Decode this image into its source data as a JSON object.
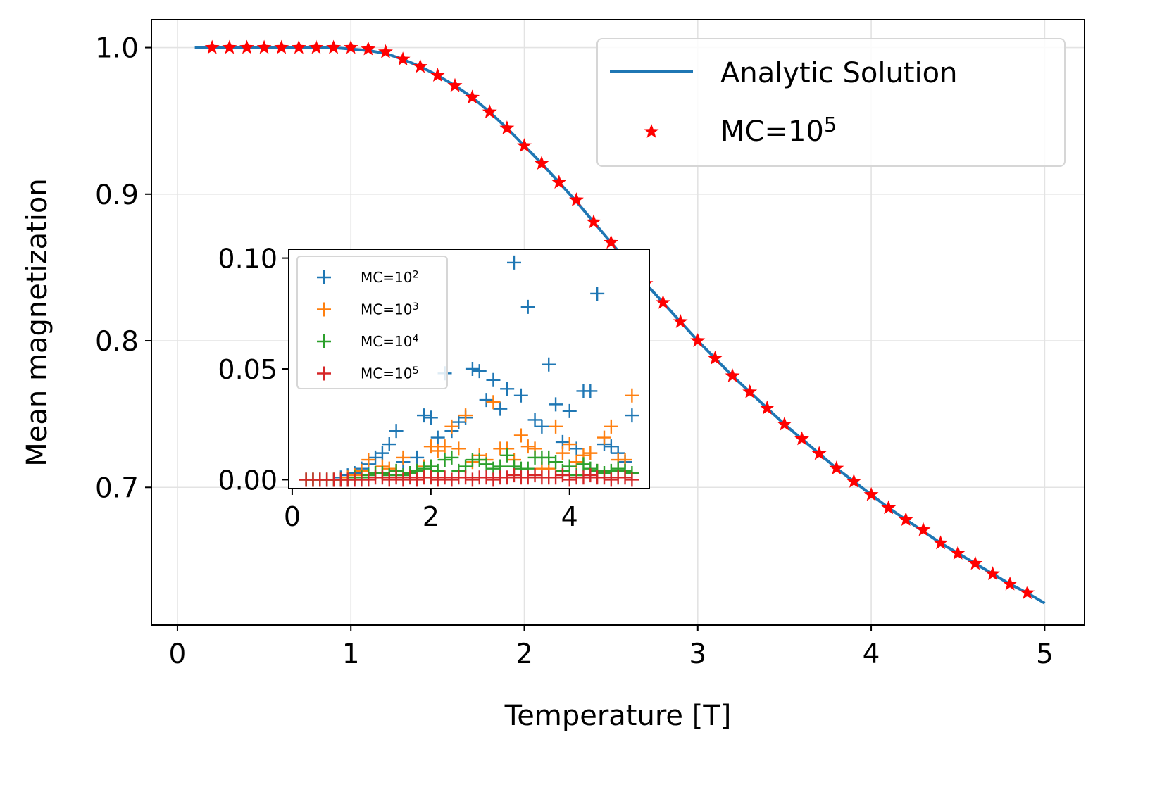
{
  "chart_data": [
    {
      "type": "line",
      "xlabel": "Temperature [T]",
      "ylabel": "Mean magnetization",
      "xlim": [
        -0.15,
        5.23
      ],
      "ylim": [
        0.606,
        1.019
      ],
      "xticks": [
        0,
        1,
        2,
        3,
        4,
        5
      ],
      "xtick_labels": [
        "0",
        "1",
        "2",
        "3",
        "4",
        "5"
      ],
      "yticks": [
        0.7,
        0.8,
        0.9,
        1.0
      ],
      "ytick_labels": [
        "0.7",
        "0.8",
        "0.9",
        "1.0"
      ],
      "grid": true,
      "legend_position": "top-right",
      "series": [
        {
          "name": "Analytic Solution",
          "kind": "line",
          "color": "#1f77b4",
          "x": [
            0.1,
            0.2,
            0.3,
            0.4,
            0.5,
            0.6,
            0.7,
            0.8,
            0.9,
            1.0,
            1.1,
            1.2,
            1.3,
            1.4,
            1.5,
            1.6,
            1.7,
            1.8,
            1.9,
            2.0,
            2.1,
            2.2,
            2.3,
            2.4,
            2.5,
            2.6,
            2.7,
            2.8,
            2.9,
            3.0,
            3.1,
            3.2,
            3.3,
            3.4,
            3.5,
            3.6,
            3.7,
            3.8,
            3.9,
            4.0,
            4.1,
            4.2,
            4.3,
            4.4,
            4.5,
            4.6,
            4.7,
            4.8,
            4.9,
            5.0
          ],
          "y": [
            1.0,
            1.0,
            1.0,
            1.0,
            1.0,
            1.0,
            1.0,
            1.0,
            1.0,
            0.999,
            0.998,
            0.996,
            0.992,
            0.987,
            0.981,
            0.974,
            0.966,
            0.956,
            0.945,
            0.933,
            0.921,
            0.908,
            0.895,
            0.881,
            0.867,
            0.853,
            0.839,
            0.826,
            0.813,
            0.8,
            0.788,
            0.776,
            0.765,
            0.754,
            0.743,
            0.733,
            0.723,
            0.713,
            0.704,
            0.695,
            0.686,
            0.678,
            0.67,
            0.662,
            0.655,
            0.648,
            0.641,
            0.634,
            0.628,
            0.621
          ]
        },
        {
          "name": "MC=10^5",
          "legend_label": {
            "base": "MC=10",
            "exp": "5"
          },
          "kind": "scatter",
          "marker": "star",
          "color": "#ff0000",
          "x": [
            0.2,
            0.3,
            0.4,
            0.5,
            0.6,
            0.7,
            0.8,
            0.9,
            1.0,
            1.1,
            1.2,
            1.3,
            1.4,
            1.5,
            1.6,
            1.7,
            1.8,
            1.9,
            2.0,
            2.1,
            2.2,
            2.3,
            2.4,
            2.5,
            2.6,
            2.7,
            2.8,
            2.9,
            3.0,
            3.1,
            3.2,
            3.3,
            3.4,
            3.5,
            3.6,
            3.7,
            3.8,
            3.9,
            4.0,
            4.1,
            4.2,
            4.3,
            4.4,
            4.5,
            4.6,
            4.7,
            4.8,
            4.9
          ],
          "y": [
            1.0,
            1.0,
            1.0,
            1.0,
            1.0,
            1.0,
            1.0,
            1.0,
            1.0,
            0.999,
            0.997,
            0.992,
            0.987,
            0.981,
            0.974,
            0.966,
            0.956,
            0.945,
            0.933,
            0.921,
            0.908,
            0.896,
            0.881,
            0.867,
            0.853,
            0.839,
            0.826,
            0.813,
            0.8,
            0.788,
            0.776,
            0.765,
            0.754,
            0.743,
            0.733,
            0.723,
            0.713,
            0.704,
            0.695,
            0.686,
            0.678,
            0.671,
            0.662,
            0.655,
            0.648,
            0.641,
            0.634,
            0.628
          ]
        }
      ]
    },
    {
      "type": "scatter",
      "role": "inset",
      "xlabel": "",
      "ylabel": "",
      "xlim": [
        -0.05,
        5.15
      ],
      "ylim": [
        -0.004,
        0.104
      ],
      "xticks": [
        0,
        2,
        4
      ],
      "xtick_labels": [
        "0",
        "2",
        "4"
      ],
      "yticks": [
        0.0,
        0.05,
        0.1
      ],
      "ytick_labels": [
        "0.00",
        "0.05",
        "0.10"
      ],
      "grid": false,
      "legend_position": "top-left",
      "series": [
        {
          "name": "MC=10^2",
          "legend_label": {
            "base": "MC=10",
            "exp": "2"
          },
          "marker": "plus",
          "color": "#1f77b4",
          "x": [
            0.2,
            0.3,
            0.4,
            0.5,
            0.6,
            0.7,
            0.8,
            0.9,
            1.0,
            1.1,
            1.2,
            1.3,
            1.4,
            1.5,
            1.6,
            1.7,
            1.8,
            1.9,
            2.0,
            2.1,
            2.2,
            2.3,
            2.4,
            2.5,
            2.6,
            2.7,
            2.8,
            2.9,
            3.0,
            3.1,
            3.2,
            3.3,
            3.4,
            3.5,
            3.6,
            3.7,
            3.8,
            3.9,
            4.0,
            4.1,
            4.2,
            4.3,
            4.4,
            4.5,
            4.6,
            4.7,
            4.8,
            4.9
          ],
          "y": [
            0.0,
            0.0,
            0.0,
            0.0,
            0.0,
            0.001,
            0.002,
            0.003,
            0.005,
            0.007,
            0.01,
            0.012,
            0.016,
            0.022,
            0.008,
            0.003,
            0.01,
            0.029,
            0.028,
            0.019,
            0.048,
            0.022,
            0.026,
            0.028,
            0.05,
            0.049,
            0.036,
            0.045,
            0.032,
            0.041,
            0.098,
            0.038,
            0.078,
            0.027,
            0.024,
            0.052,
            0.034,
            0.017,
            0.031,
            0.014,
            0.04,
            0.04,
            0.084,
            0.016,
            0.015,
            0.012,
            0.008,
            0.029
          ]
        },
        {
          "name": "MC=10^3",
          "legend_label": {
            "base": "MC=10",
            "exp": "3"
          },
          "marker": "plus",
          "color": "#ff7f0e",
          "x": [
            0.2,
            0.3,
            0.4,
            0.5,
            0.6,
            0.7,
            0.8,
            0.9,
            1.0,
            1.1,
            1.2,
            1.3,
            1.4,
            1.5,
            1.6,
            1.7,
            1.8,
            1.9,
            2.0,
            2.1,
            2.2,
            2.3,
            2.4,
            2.5,
            2.6,
            2.7,
            2.8,
            2.9,
            3.0,
            3.1,
            3.2,
            3.3,
            3.4,
            3.5,
            3.6,
            3.7,
            3.8,
            3.9,
            4.0,
            4.1,
            4.2,
            4.3,
            4.4,
            4.5,
            4.6,
            4.7,
            4.8,
            4.9
          ],
          "y": [
            0.0,
            0.0,
            0.0,
            0.0,
            0.0,
            0.0,
            0.001,
            0.002,
            0.004,
            0.009,
            0.003,
            0.006,
            0.005,
            0.004,
            0.01,
            0.003,
            0.004,
            0.006,
            0.015,
            0.013,
            0.015,
            0.024,
            0.014,
            0.029,
            0.008,
            0.011,
            0.009,
            0.035,
            0.014,
            0.014,
            0.009,
            0.02,
            0.015,
            0.014,
            0.005,
            0.005,
            0.024,
            0.012,
            0.016,
            0.008,
            0.011,
            0.012,
            0.004,
            0.019,
            0.024,
            0.009,
            0.009,
            0.038
          ]
        },
        {
          "name": "MC=10^4",
          "legend_label": {
            "base": "MC=10",
            "exp": "4"
          },
          "marker": "plus",
          "color": "#2ca02c",
          "x": [
            0.2,
            0.3,
            0.4,
            0.5,
            0.6,
            0.7,
            0.8,
            0.9,
            1.0,
            1.1,
            1.2,
            1.3,
            1.4,
            1.5,
            1.6,
            1.7,
            1.8,
            1.9,
            2.0,
            2.1,
            2.2,
            2.3,
            2.4,
            2.5,
            2.6,
            2.7,
            2.8,
            2.9,
            3.0,
            3.1,
            3.2,
            3.3,
            3.4,
            3.5,
            3.6,
            3.7,
            3.8,
            3.9,
            4.0,
            4.1,
            4.2,
            4.3,
            4.4,
            4.5,
            4.6,
            4.7,
            4.8,
            4.9
          ],
          "y": [
            0.0,
            0.0,
            0.0,
            0.0,
            0.0,
            0.0,
            0.0,
            0.001,
            0.001,
            0.002,
            0.003,
            0.003,
            0.002,
            0.004,
            0.002,
            0.003,
            0.004,
            0.005,
            0.006,
            0.004,
            0.009,
            0.01,
            0.004,
            0.006,
            0.009,
            0.009,
            0.007,
            0.005,
            0.006,
            0.011,
            0.006,
            0.005,
            0.005,
            0.01,
            0.01,
            0.01,
            0.008,
            0.004,
            0.006,
            0.002,
            0.007,
            0.005,
            0.004,
            0.003,
            0.004,
            0.005,
            0.004,
            0.003
          ]
        },
        {
          "name": "MC=10^5",
          "legend_label": {
            "base": "MC=10",
            "exp": "5"
          },
          "marker": "plus",
          "color": "#d62728",
          "x": [
            0.2,
            0.3,
            0.4,
            0.5,
            0.6,
            0.7,
            0.8,
            0.9,
            1.0,
            1.1,
            1.2,
            1.3,
            1.4,
            1.5,
            1.6,
            1.7,
            1.8,
            1.9,
            2.0,
            2.1,
            2.2,
            2.3,
            2.4,
            2.5,
            2.6,
            2.7,
            2.8,
            2.9,
            3.0,
            3.1,
            3.2,
            3.3,
            3.4,
            3.5,
            3.6,
            3.7,
            3.8,
            3.9,
            4.0,
            4.1,
            4.2,
            4.3,
            4.4,
            4.5,
            4.6,
            4.7,
            4.8,
            4.9
          ],
          "y": [
            0.0,
            0.0,
            0.0,
            0.0,
            0.0,
            0.0,
            0.0,
            0.0,
            0.0,
            0.0,
            0.001,
            0.001,
            0.0,
            0.001,
            0.0,
            0.001,
            0.0,
            0.001,
            0.001,
            0.0,
            0.001,
            0.0,
            0.001,
            0.001,
            0.0,
            0.001,
            0.001,
            0.0,
            0.001,
            0.001,
            0.002,
            0.001,
            0.001,
            0.002,
            0.001,
            0.001,
            0.001,
            0.002,
            0.0,
            0.001,
            0.001,
            0.002,
            0.001,
            0.001,
            0.0,
            0.001,
            0.001,
            0.0
          ]
        }
      ]
    }
  ]
}
